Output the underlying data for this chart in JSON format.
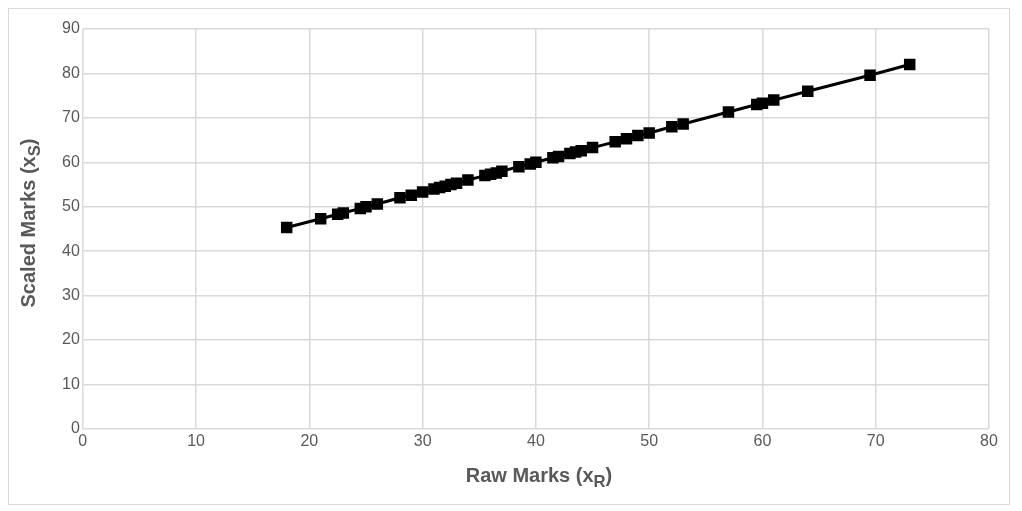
{
  "chart_data": {
    "type": "line",
    "xlabel": "Raw Marks  (x$_{R}$)",
    "ylabel": "Scaled Marks (x$_{S}$)",
    "x": [
      18,
      21,
      22.5,
      23,
      24.5,
      25,
      26,
      28,
      29,
      30,
      31,
      31.5,
      32,
      32.5,
      33,
      34,
      35.5,
      36,
      36.5,
      37,
      38.5,
      39.5,
      40,
      41.5,
      42,
      43,
      43.5,
      44,
      45,
      47,
      48,
      49,
      50,
      52,
      53,
      57,
      59.5,
      60,
      61,
      64,
      69.5,
      73
    ],
    "series": [
      {
        "color": "#000000",
        "values": [
          45.3,
          47.3,
          48.3,
          48.6,
          49.6,
          50.0,
          50.6,
          52.0,
          52.6,
          53.3,
          54.0,
          54.3,
          54.6,
          55.0,
          55.3,
          56.0,
          57.0,
          57.3,
          57.6,
          58.0,
          59.0,
          59.6,
          60.0,
          61.0,
          61.3,
          62.0,
          62.3,
          62.6,
          63.3,
          64.6,
          65.3,
          66.0,
          66.6,
          68.0,
          68.6,
          71.3,
          73.0,
          73.3,
          74.0,
          76.0,
          79.6,
          82.0
        ]
      }
    ],
    "xlim": [
      0,
      80
    ],
    "xticks": [
      0,
      10,
      20,
      30,
      40,
      50,
      60,
      70,
      80
    ],
    "ylim": [
      0,
      90
    ],
    "yticks": [
      0,
      10,
      20,
      30,
      40,
      50,
      60,
      70,
      80,
      90
    ],
    "grid": true,
    "legend": false,
    "marker": "square",
    "line_style": "solid"
  }
}
